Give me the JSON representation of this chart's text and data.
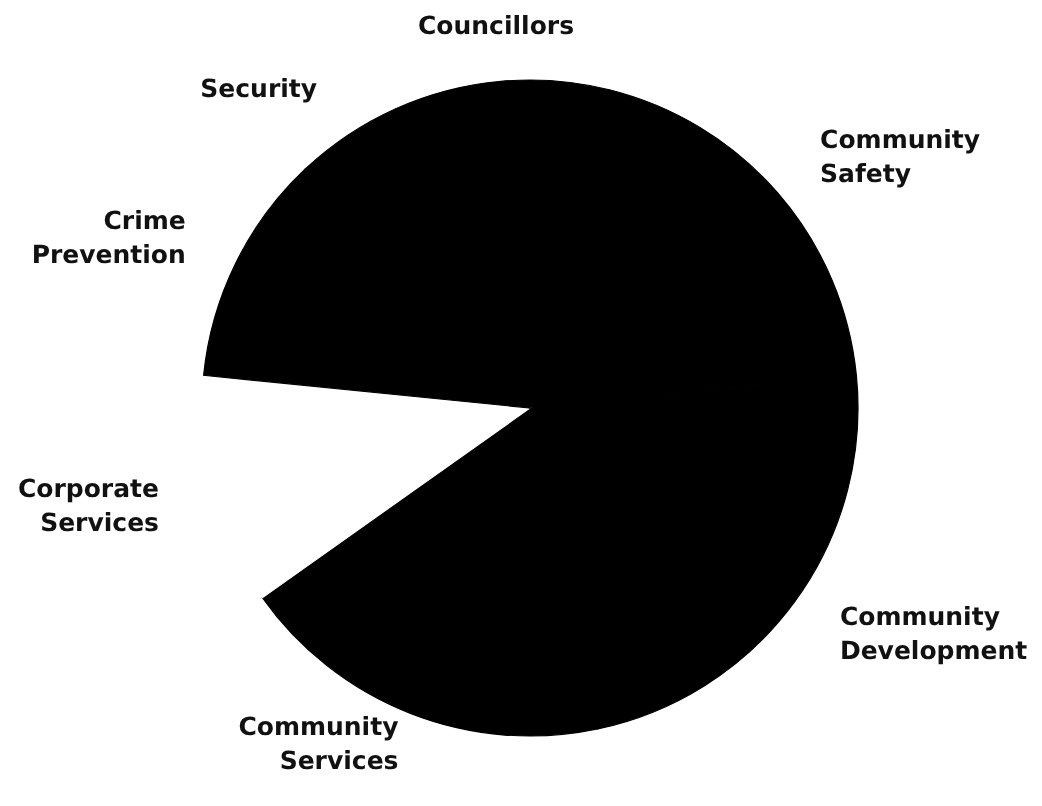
{
  "chart_data": {
    "type": "pie",
    "categories": [
      "Community Safety",
      "Community Development",
      "Community Services",
      "Corporate Services",
      "Crime Prevention",
      "Security",
      "Councillors"
    ],
    "values": [
      19.5,
      23.3,
      18.5,
      11.4,
      11.4,
      5.3,
      10.6
    ],
    "colors": [
      "#000000",
      "#000000",
      "#000000",
      "#ffffff",
      "#000000",
      "#000000",
      "#000000"
    ]
  }
}
